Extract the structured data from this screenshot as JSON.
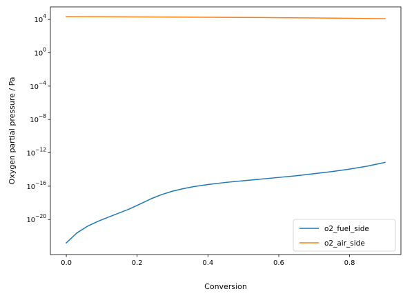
{
  "chart_data": {
    "type": "line",
    "title": "",
    "xlabel": "Conversion",
    "ylabel": "Oxygen partial pressure / Pa",
    "xscale": "linear",
    "yscale": "log",
    "xlim": [
      -0.045,
      0.945
    ],
    "ylim_exponent": [
      -24.2,
      5.5
    ],
    "xticks": [
      {
        "value": 0.0,
        "label": "0.0"
      },
      {
        "value": 0.2,
        "label": "0.2"
      },
      {
        "value": 0.4,
        "label": "0.4"
      },
      {
        "value": 0.6,
        "label": "0.6"
      },
      {
        "value": 0.8,
        "label": "0.8"
      }
    ],
    "yticks": [
      {
        "exponent": 4,
        "base": "10",
        "exp": "4"
      },
      {
        "exponent": 0,
        "base": "10",
        "exp": "0"
      },
      {
        "exponent": -4,
        "base": "10",
        "exp": "−4"
      },
      {
        "exponent": -8,
        "base": "10",
        "exp": "−8"
      },
      {
        "exponent": -12,
        "base": "10",
        "exp": "−12"
      },
      {
        "exponent": -16,
        "base": "10",
        "exp": "−16"
      },
      {
        "exponent": -20,
        "base": "10",
        "exp": "−20"
      }
    ],
    "grid": false,
    "legend_position": "lower-right",
    "series": [
      {
        "name": "o2_fuel_side",
        "color": "#1f77b4",
        "x": [
          0.0,
          0.03,
          0.06,
          0.09,
          0.12,
          0.15,
          0.18,
          0.21,
          0.24,
          0.27,
          0.3,
          0.33,
          0.36,
          0.4,
          0.45,
          0.5,
          0.55,
          0.6,
          0.65,
          0.7,
          0.75,
          0.8,
          0.85,
          0.9
        ],
        "y_log10": [
          -22.8,
          -21.6,
          -20.8,
          -20.2,
          -19.7,
          -19.2,
          -18.7,
          -18.1,
          -17.5,
          -17.0,
          -16.6,
          -16.3,
          -16.05,
          -15.8,
          -15.55,
          -15.35,
          -15.15,
          -14.95,
          -14.75,
          -14.5,
          -14.25,
          -13.95,
          -13.6,
          -13.15
        ]
      },
      {
        "name": "o2_air_side",
        "color": "#ff7f0e",
        "x": [
          0.0,
          0.1,
          0.2,
          0.3,
          0.4,
          0.5,
          0.6,
          0.7,
          0.8,
          0.9
        ],
        "y_log10": [
          4.33,
          4.32,
          4.3,
          4.28,
          4.26,
          4.24,
          4.21,
          4.18,
          4.14,
          4.08
        ]
      }
    ]
  }
}
